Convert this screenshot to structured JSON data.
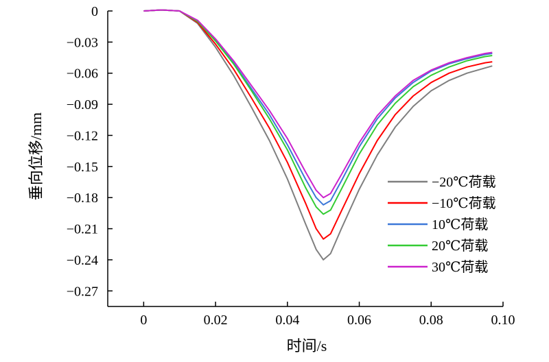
{
  "chart_data": {
    "type": "line",
    "xlabel": "时间/s",
    "ylabel": "垂向位移/mm",
    "xlim": [
      -0.01,
      0.1
    ],
    "ylim": [
      -0.285,
      0
    ],
    "xticks": [
      0,
      0.02,
      0.04,
      0.06,
      0.08,
      0.1
    ],
    "xtick_labels": [
      "0",
      "0.02",
      "0.04",
      "0.06",
      "0.08",
      "0.10"
    ],
    "yticks": [
      0,
      -0.03,
      -0.06,
      -0.09,
      -0.12,
      -0.15,
      -0.18,
      -0.21,
      -0.24,
      -0.27
    ],
    "ytick_labels": [
      "0",
      "−0.03",
      "−0.06",
      "−0.09",
      "−0.12",
      "−0.15",
      "−0.18",
      "−0.21",
      "−0.24",
      "−0.27"
    ],
    "grid": false,
    "legend_position": "right",
    "x": [
      0,
      0.005,
      0.01,
      0.015,
      0.02,
      0.025,
      0.03,
      0.035,
      0.04,
      0.045,
      0.048,
      0.05,
      0.052,
      0.055,
      0.06,
      0.065,
      0.07,
      0.075,
      0.08,
      0.085,
      0.09,
      0.095,
      0.097
    ],
    "series": [
      {
        "name": "−20℃荷载",
        "color": "#7f7f7f",
        "values": [
          0,
          0.001,
          0,
          -0.012,
          -0.035,
          -0.062,
          -0.093,
          -0.125,
          -0.162,
          -0.205,
          -0.23,
          -0.24,
          -0.234,
          -0.21,
          -0.172,
          -0.139,
          -0.112,
          -0.092,
          -0.077,
          -0.067,
          -0.06,
          -0.055,
          -0.053
        ]
      },
      {
        "name": "−10℃荷载",
        "color": "#ff0000",
        "values": [
          0,
          0.001,
          0,
          -0.011,
          -0.032,
          -0.056,
          -0.084,
          -0.113,
          -0.146,
          -0.185,
          -0.21,
          -0.22,
          -0.215,
          -0.193,
          -0.157,
          -0.125,
          -0.1,
          -0.082,
          -0.069,
          -0.06,
          -0.054,
          -0.05,
          -0.049
        ]
      },
      {
        "name": "10℃荷载",
        "color": "#3c78d8",
        "values": [
          0,
          0.001,
          0,
          -0.01,
          -0.028,
          -0.05,
          -0.075,
          -0.1,
          -0.129,
          -0.162,
          -0.18,
          -0.187,
          -0.183,
          -0.164,
          -0.131,
          -0.104,
          -0.084,
          -0.069,
          -0.058,
          -0.051,
          -0.046,
          -0.042,
          -0.041
        ]
      },
      {
        "name": "20℃荷载",
        "color": "#33cc33",
        "values": [
          0,
          0.001,
          0,
          -0.01,
          -0.029,
          -0.051,
          -0.077,
          -0.104,
          -0.134,
          -0.17,
          -0.189,
          -0.196,
          -0.192,
          -0.172,
          -0.138,
          -0.11,
          -0.089,
          -0.073,
          -0.062,
          -0.054,
          -0.048,
          -0.044,
          -0.043
        ]
      },
      {
        "name": "30℃荷载",
        "color": "#cc22cc",
        "values": [
          0,
          0.001,
          0,
          -0.009,
          -0.027,
          -0.048,
          -0.072,
          -0.096,
          -0.123,
          -0.155,
          -0.173,
          -0.18,
          -0.176,
          -0.158,
          -0.127,
          -0.101,
          -0.082,
          -0.067,
          -0.057,
          -0.05,
          -0.045,
          -0.041,
          -0.04
        ]
      }
    ]
  }
}
